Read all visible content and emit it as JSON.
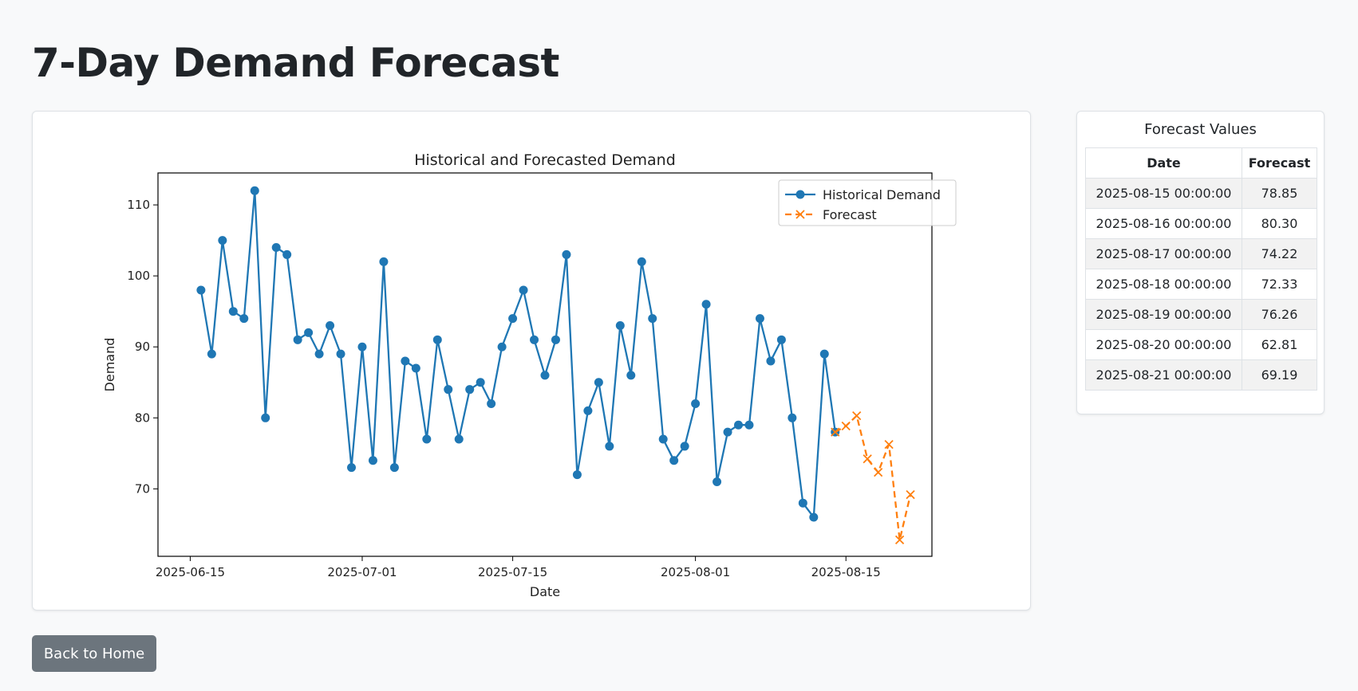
{
  "page": {
    "title": "7-Day Demand Forecast"
  },
  "table": {
    "caption": "Forecast Values",
    "headers": [
      "Date",
      "Forecast"
    ],
    "rows": [
      {
        "date": "2025-08-15 00:00:00",
        "forecast": "78.85"
      },
      {
        "date": "2025-08-16 00:00:00",
        "forecast": "80.30"
      },
      {
        "date": "2025-08-17 00:00:00",
        "forecast": "74.22"
      },
      {
        "date": "2025-08-18 00:00:00",
        "forecast": "72.33"
      },
      {
        "date": "2025-08-19 00:00:00",
        "forecast": "76.26"
      },
      {
        "date": "2025-08-20 00:00:00",
        "forecast": "62.81"
      },
      {
        "date": "2025-08-21 00:00:00",
        "forecast": "69.19"
      }
    ]
  },
  "buttons": {
    "back_label": "Back to Home"
  },
  "colors": {
    "historical": "#1f77b4",
    "forecast": "#ff7f0e",
    "button_bg": "#6c757d"
  },
  "chart_data": {
    "type": "line",
    "title": "Historical and Forecasted Demand",
    "xlabel": "Date",
    "ylabel": "Demand",
    "xlim": [
      "2025-06-12",
      "2025-08-23"
    ],
    "ylim": [
      60.5,
      114.5
    ],
    "xticks": [
      "2025-06-15",
      "2025-07-01",
      "2025-07-15",
      "2025-08-01",
      "2025-08-15"
    ],
    "yticks": [
      70,
      80,
      90,
      100,
      110
    ],
    "legend_position": "top-right",
    "grid": false,
    "series": [
      {
        "name": "Historical Demand",
        "style": "solid-circle",
        "start_date": "2025-06-16",
        "values": [
          98,
          89,
          105,
          95,
          94,
          112,
          80,
          104,
          103,
          91,
          92,
          89,
          93,
          89,
          73,
          90,
          74,
          102,
          73,
          88,
          87,
          77,
          91,
          84,
          77,
          84,
          85,
          82,
          90,
          94,
          98,
          91,
          86,
          91,
          103,
          72,
          81,
          85,
          76,
          93,
          86,
          102,
          94,
          77,
          74,
          76,
          82,
          96,
          71,
          78,
          79,
          79,
          94,
          88,
          91,
          80,
          68,
          66,
          89,
          78
        ]
      },
      {
        "name": "Forecast",
        "style": "dashed-x",
        "dates": [
          "2025-08-14",
          "2025-08-15",
          "2025-08-16",
          "2025-08-17",
          "2025-08-18",
          "2025-08-19",
          "2025-08-20",
          "2025-08-21"
        ],
        "values": [
          78,
          78.85,
          80.3,
          74.22,
          72.33,
          76.26,
          62.81,
          69.19
        ]
      }
    ]
  }
}
